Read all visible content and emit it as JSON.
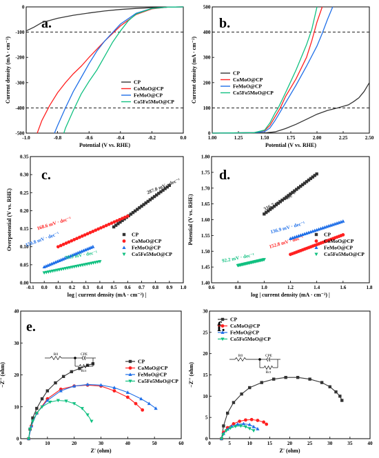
{
  "figure": "composite",
  "chart_data": [
    {
      "panel": "a",
      "type": "line",
      "title": "",
      "xlabel": "Potential (V vs. RHE)",
      "ylabel": "Current density (mA · cm⁻²)",
      "xlim": [
        -1.0,
        0.0
      ],
      "ylim": [
        -500,
        0
      ],
      "xticks": [
        "-1.0",
        "-0.8",
        "-0.6",
        "-0.4",
        "-0.2",
        "0.0"
      ],
      "yticks": [
        "-500",
        "-400",
        "-300",
        "-200",
        "-100",
        "0"
      ],
      "hlines": [
        -100,
        -400
      ],
      "legend": "center-right",
      "series": [
        {
          "name": "CP",
          "color": "#333333",
          "x": [
            -1.0,
            -0.95,
            -0.9,
            -0.8,
            -0.7,
            -0.6,
            -0.5,
            -0.4,
            -0.3,
            -0.2,
            -0.1,
            0.0
          ],
          "y": [
            -95,
            -80,
            -62,
            -45,
            -33,
            -24,
            -16,
            -10,
            -6,
            -3,
            -1,
            0
          ]
        },
        {
          "name": "CoMoO@CP",
          "color": "#ff2020",
          "x": [
            -0.93,
            -0.9,
            -0.85,
            -0.8,
            -0.75,
            -0.7,
            -0.65,
            -0.6,
            -0.5,
            -0.4,
            -0.3,
            -0.2,
            -0.1,
            0.0
          ],
          "y": [
            -500,
            -450,
            -390,
            -340,
            -300,
            -265,
            -235,
            -200,
            -135,
            -75,
            -30,
            -8,
            -1,
            0
          ]
        },
        {
          "name": "FeMoO@CP",
          "color": "#1f6fe8",
          "x": [
            -0.82,
            -0.8,
            -0.75,
            -0.7,
            -0.65,
            -0.6,
            -0.55,
            -0.5,
            -0.4,
            -0.3,
            -0.2,
            -0.1,
            0.0
          ],
          "y": [
            -500,
            -470,
            -400,
            -335,
            -280,
            -225,
            -175,
            -135,
            -68,
            -25,
            -6,
            -1,
            0
          ]
        },
        {
          "name": "Co5Fe5MoO@CP",
          "color": "#10c080",
          "x": [
            -0.76,
            -0.75,
            -0.7,
            -0.65,
            -0.6,
            -0.55,
            -0.5,
            -0.45,
            -0.4,
            -0.35,
            -0.3,
            -0.2,
            -0.1,
            0.0
          ],
          "y": [
            -500,
            -480,
            -410,
            -345,
            -295,
            -250,
            -195,
            -140,
            -95,
            -55,
            -28,
            -6,
            -1,
            0
          ]
        }
      ]
    },
    {
      "panel": "b",
      "type": "line",
      "title": "",
      "xlabel": "Potential (V vs. RHE)",
      "ylabel": "Current density (mA · cm⁻²)",
      "xlim": [
        1.0,
        2.5
      ],
      "ylim": [
        0,
        500
      ],
      "xticks": [
        "1.00",
        "1.25",
        "1.50",
        "1.75",
        "2.00",
        "2.25",
        "2.50"
      ],
      "yticks": [
        "0",
        "100",
        "200",
        "300",
        "400",
        "500"
      ],
      "hlines": [
        100,
        400
      ],
      "legend": "top-left",
      "series": [
        {
          "name": "CP",
          "color": "#333333",
          "x": [
            1.0,
            1.3,
            1.5,
            1.6,
            1.7,
            1.8,
            1.9,
            2.0,
            2.1,
            2.2,
            2.3,
            2.35,
            2.4,
            2.45,
            2.5
          ],
          "y": [
            0,
            0,
            1,
            5,
            18,
            35,
            55,
            75,
            90,
            100,
            112,
            125,
            140,
            165,
            200
          ]
        },
        {
          "name": "CoMoO@CP",
          "color": "#ff2020",
          "x": [
            1.0,
            1.4,
            1.5,
            1.55,
            1.6,
            1.65,
            1.7,
            1.8,
            1.9,
            1.95,
            2.0,
            2.05
          ],
          "y": [
            0,
            2,
            10,
            30,
            65,
            100,
            145,
            215,
            300,
            365,
            440,
            500
          ]
        },
        {
          "name": "FeMoO@CP",
          "color": "#1f6fe8",
          "x": [
            1.0,
            1.4,
            1.5,
            1.55,
            1.6,
            1.65,
            1.7,
            1.8,
            1.9,
            2.0,
            2.05,
            2.1,
            2.15
          ],
          "y": [
            0,
            2,
            6,
            20,
            50,
            85,
            120,
            190,
            265,
            345,
            395,
            450,
            500
          ]
        },
        {
          "name": "Co5Fe5MoO@CP",
          "color": "#10c080",
          "x": [
            1.0,
            1.4,
            1.5,
            1.55,
            1.6,
            1.63,
            1.7,
            1.8,
            1.9,
            1.95,
            2.0
          ],
          "y": [
            0,
            2,
            12,
            40,
            80,
            100,
            160,
            250,
            350,
            410,
            500
          ]
        }
      ]
    },
    {
      "panel": "c",
      "type": "scatter",
      "title": "",
      "xlabel": "log | current density (mA · cm⁻²) |",
      "ylabel": "Overpotential (V vs. RHE)",
      "xlim": [
        -0.1,
        1.0
      ],
      "ylim": [
        0.0,
        0.35
      ],
      "xticks": [
        "-0.1",
        "0.0",
        "0.1",
        "0.2",
        "0.3",
        "0.4",
        "0.5",
        "0.6",
        "0.7",
        "0.8",
        "0.9",
        "1.0"
      ],
      "yticks": [
        "0.00",
        "0.05",
        "0.10",
        "0.15",
        "0.20",
        "0.25",
        "0.30",
        "0.35"
      ],
      "legend": "bottom-right",
      "series": [
        {
          "name": "CP",
          "color": "#333333",
          "marker": "square",
          "x": [
            0.5,
            0.9
          ],
          "y": [
            0.155,
            0.27
          ],
          "slope_label": "287.0 mV · dec⁻¹"
        },
        {
          "name": "CoMoO@CP",
          "color": "#ff2020",
          "marker": "circle",
          "x": [
            0.1,
            0.6
          ],
          "y": [
            0.1,
            0.185
          ],
          "slope_label": "168.6 mV · dec⁻¹"
        },
        {
          "name": "FeMoO@CP",
          "color": "#1f6fe8",
          "marker": "triangle-up",
          "x": [
            0.0,
            0.35
          ],
          "y": [
            0.044,
            0.1
          ],
          "slope_label": "159.8 mV · dec⁻¹"
        },
        {
          "name": "Co5Fe5MoO@CP",
          "color": "#10c080",
          "marker": "triangle-down",
          "x": [
            0.0,
            0.4
          ],
          "y": [
            0.028,
            0.059
          ],
          "slope_label": "78.3 mV · dec⁻¹"
        }
      ]
    },
    {
      "panel": "d",
      "type": "scatter",
      "title": "",
      "xlabel": "log | current density (mA · cm⁻²) |",
      "ylabel": "Potential (V vs. RHE)",
      "xlim": [
        0.6,
        1.8
      ],
      "ylim": [
        1.4,
        1.8
      ],
      "xticks": [
        "0.6",
        "0.8",
        "1.0",
        "1.2",
        "1.4",
        "1.6",
        "1.8"
      ],
      "yticks": [
        "1.40",
        "1.45",
        "1.50",
        "1.55",
        "1.60",
        "1.65",
        "1.70",
        "1.75",
        "1.80"
      ],
      "legend": "bottom-right",
      "series": [
        {
          "name": "CP",
          "color": "#333333",
          "marker": "square",
          "x": [
            1.0,
            1.4
          ],
          "y": [
            1.618,
            1.745
          ],
          "slope_label": "316.7 mV · dec⁻¹"
        },
        {
          "name": "CoMoO@CP",
          "color": "#ff2020",
          "marker": "circle",
          "x": [
            1.2,
            1.6
          ],
          "y": [
            1.49,
            1.552
          ],
          "slope_label": "152.8 mV · dec⁻¹"
        },
        {
          "name": "FeMoO@CP",
          "color": "#1f6fe8",
          "marker": "triangle-up",
          "x": [
            1.2,
            1.6
          ],
          "y": [
            1.54,
            1.595
          ],
          "slope_label": "136.9 mV · dec⁻¹"
        },
        {
          "name": "Co5Fe5MoO@CP",
          "color": "#10c080",
          "marker": "triangle-down",
          "x": [
            0.8,
            1.0
          ],
          "y": [
            1.455,
            1.474
          ],
          "slope_label": "92.2 mV · dec⁻¹"
        }
      ]
    },
    {
      "panel": "e",
      "type": "scatter",
      "title": "",
      "xlabel": "Z' (ohm)",
      "ylabel": "−Z'' (ohm)",
      "xlim": [
        0,
        60
      ],
      "ylim": [
        0,
        40
      ],
      "xticks": [
        "0",
        "10",
        "20",
        "30",
        "40",
        "50",
        "60"
      ],
      "yticks": [
        "0",
        "10",
        "20",
        "30",
        "40"
      ],
      "legend": "center-right",
      "circuit": {
        "resistor": "R0",
        "element": "CPE",
        "parallel": "Rct"
      },
      "series": [
        {
          "name": "CP",
          "color": "#333333",
          "marker": "square",
          "x": [
            3,
            3.5,
            4.5,
            6,
            8,
            10,
            13,
            16,
            19,
            22,
            25,
            27
          ],
          "y": [
            0,
            3,
            6.5,
            9.5,
            12.5,
            15,
            17.5,
            19.5,
            21,
            22,
            23,
            23.5
          ]
        },
        {
          "name": "CoMoO@CP",
          "color": "#ff2020",
          "marker": "circle",
          "x": [
            3,
            4,
            6,
            10,
            15,
            20,
            25,
            30,
            35,
            40,
            43,
            45.5
          ],
          "y": [
            0,
            4,
            8,
            12.5,
            15.5,
            16.5,
            16.8,
            16.5,
            15,
            13,
            11,
            9
          ]
        },
        {
          "name": "FeMoO@CP",
          "color": "#1f6fe8",
          "marker": "triangle-up",
          "x": [
            3,
            4,
            6,
            10,
            15,
            20,
            25,
            30,
            35,
            40,
            45,
            48,
            50.5
          ],
          "y": [
            0,
            4,
            8,
            12,
            15,
            16.5,
            17,
            16.8,
            16,
            14.5,
            12.5,
            11,
            9.5
          ]
        },
        {
          "name": "Co5Fe5MoO@CP",
          "color": "#10c080",
          "marker": "triangle-down",
          "x": [
            3,
            3.5,
            4.5,
            6,
            8,
            11,
            14,
            17,
            20,
            23,
            25,
            26.5
          ],
          "y": [
            0,
            3,
            5.5,
            8,
            10,
            11.5,
            12,
            11.8,
            11,
            9.5,
            7.5,
            5.5
          ]
        }
      ]
    },
    {
      "panel": "f",
      "type": "scatter",
      "title": "",
      "xlabel": "Z' (ohm)",
      "ylabel": "−Z'' (ohm)",
      "xlim": [
        0,
        40
      ],
      "ylim": [
        0,
        30
      ],
      "xticks": [
        "0",
        "5",
        "10",
        "15",
        "20",
        "25",
        "30",
        "35",
        "40"
      ],
      "yticks": [
        "0",
        "5",
        "10",
        "15",
        "20",
        "25",
        "30"
      ],
      "legend": "top-left",
      "circuit": {
        "resistor": "R0",
        "element": "CPE",
        "parallel": "Rct"
      },
      "series": [
        {
          "name": "CP",
          "color": "#333333",
          "marker": "square",
          "x": [
            3,
            3.5,
            4.5,
            6,
            8,
            10,
            13,
            16,
            19,
            22,
            25,
            28,
            30,
            31.5,
            32.5,
            33
          ],
          "y": [
            0,
            3,
            6,
            8.5,
            10.5,
            12,
            13.2,
            14,
            14.4,
            14.4,
            14,
            13.2,
            12.2,
            11,
            10,
            9
          ]
        },
        {
          "name": "CoMoO@CP",
          "color": "#ff2020",
          "marker": "circle",
          "x": [
            3,
            3.5,
            4.5,
            6,
            7.5,
            9,
            10.5,
            12,
            13.5,
            14.2
          ],
          "y": [
            0,
            1.5,
            2.6,
            3.5,
            4.1,
            4.4,
            4.5,
            4.3,
            3.9,
            3.4
          ]
        },
        {
          "name": "FeMoO@CP",
          "color": "#1f6fe8",
          "marker": "triangle-up",
          "x": [
            3,
            3.5,
            4.5,
            5.5,
            7,
            8.5,
            10,
            11,
            12
          ],
          "y": [
            0,
            1.2,
            2.2,
            2.9,
            3.4,
            3.5,
            3.3,
            2.8,
            2.3
          ]
        },
        {
          "name": "Co5Fe5MoO@CP",
          "color": "#10c080",
          "marker": "triangle-down",
          "x": [
            3,
            3.4,
            4.2,
            5.2,
            6.5,
            7.8,
            9,
            10,
            11
          ],
          "y": [
            0,
            1,
            1.9,
            2.5,
            2.9,
            3,
            2.8,
            2.4,
            1.9
          ]
        }
      ]
    }
  ]
}
